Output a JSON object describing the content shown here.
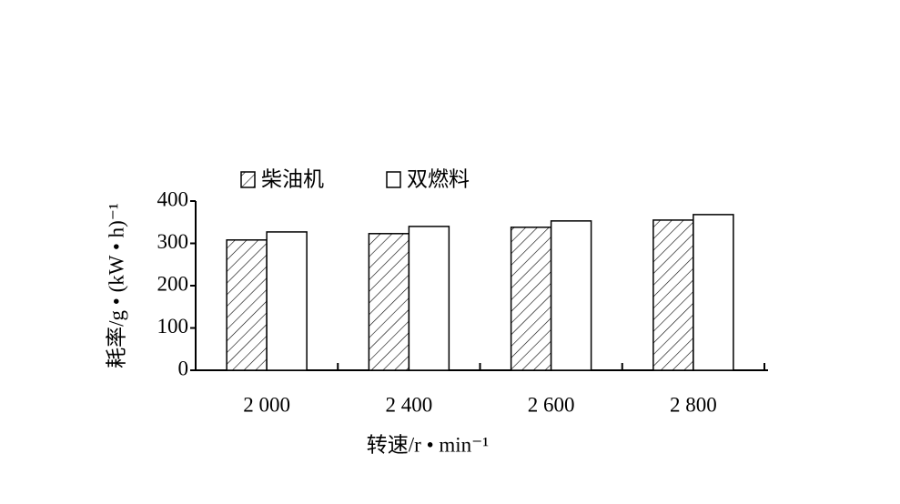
{
  "chart_data": {
    "type": "bar",
    "xlabel": "转速/r • min⁻¹",
    "ylabel": "耗率/g • (kW • h)⁻¹",
    "categories": [
      "2 000",
      "2 400",
      "2 600",
      "2 800"
    ],
    "series": [
      {
        "name": "柴油机",
        "color": "#000000",
        "pattern": "hatch",
        "values": [
          308,
          323,
          338,
          355
        ]
      },
      {
        "name": "双燃料",
        "color": "#000000",
        "pattern": "none",
        "values": [
          327,
          340,
          353,
          368
        ]
      }
    ],
    "ylim": [
      0,
      400
    ],
    "yticks": [
      0,
      100,
      200,
      300,
      400
    ],
    "grid": false,
    "legend": "top"
  }
}
